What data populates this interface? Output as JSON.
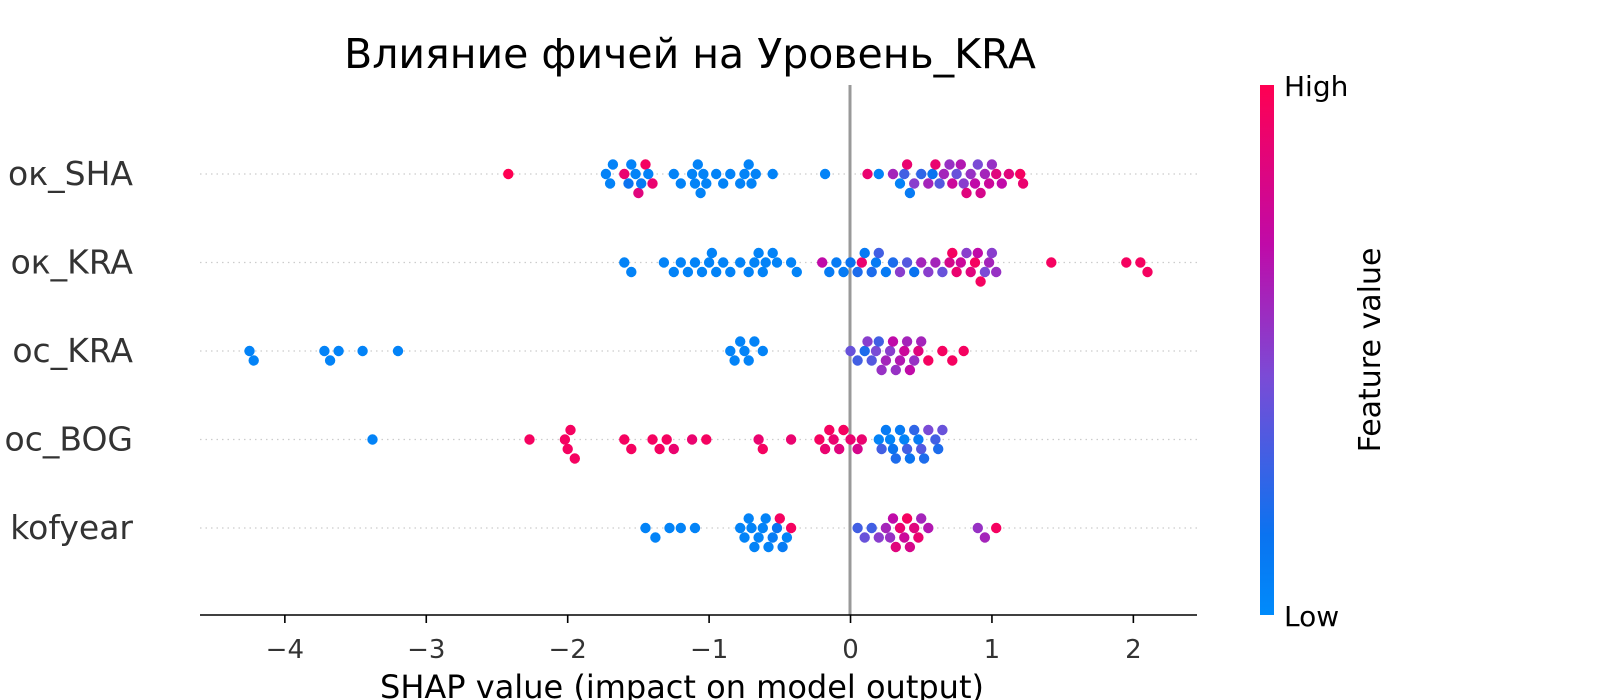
{
  "chart_data": {
    "type": "scatter",
    "subtype": "shap-beeswarm",
    "title": "Влияние фичей на Уровень_KRA",
    "xlabel": "SHAP value (impact on model output)",
    "xlim": [
      -4.6,
      2.45
    ],
    "x_ticks": [
      -4,
      -3,
      -2,
      -1,
      0,
      1,
      2
    ],
    "x_tick_labels": [
      "−4",
      "−3",
      "−2",
      "−1",
      "0",
      "1",
      "2"
    ],
    "colorbar": {
      "label": "Feature value",
      "high_label": "High",
      "low_label": "Low",
      "low_color": "#008bfb",
      "high_color": "#ff0052"
    },
    "zero_line_color": "#999999",
    "grid_dotted_rows": true,
    "features": [
      {
        "label": "ок_SHA",
        "points": [
          [
            -2.42,
            1.0
          ],
          [
            -1.73,
            0.05
          ],
          [
            -1.7,
            0.05
          ],
          [
            -1.68,
            0.05
          ],
          [
            -1.6,
            0.9
          ],
          [
            -1.57,
            0.15
          ],
          [
            -1.55,
            0.05
          ],
          [
            -1.52,
            0.05
          ],
          [
            -1.5,
            0.85
          ],
          [
            -1.48,
            0.1
          ],
          [
            -1.45,
            0.95
          ],
          [
            -1.43,
            0.05
          ],
          [
            -1.4,
            0.9
          ],
          [
            -1.25,
            0.05
          ],
          [
            -1.2,
            0.05
          ],
          [
            -1.12,
            0.05
          ],
          [
            -1.1,
            0.05
          ],
          [
            -1.08,
            0.05
          ],
          [
            -1.06,
            0.05
          ],
          [
            -1.04,
            0.05
          ],
          [
            -1.02,
            0.05
          ],
          [
            -0.95,
            0.05
          ],
          [
            -0.9,
            0.05
          ],
          [
            -0.85,
            0.05
          ],
          [
            -0.78,
            0.05
          ],
          [
            -0.75,
            0.05
          ],
          [
            -0.72,
            0.05
          ],
          [
            -0.7,
            0.05
          ],
          [
            -0.67,
            0.05
          ],
          [
            -0.55,
            0.05
          ],
          [
            -0.18,
            0.05
          ],
          [
            0.12,
            0.9
          ],
          [
            0.2,
            0.05
          ],
          [
            0.3,
            0.6
          ],
          [
            0.35,
            0.05
          ],
          [
            0.38,
            0.3
          ],
          [
            0.4,
            0.9
          ],
          [
            0.42,
            0.1
          ],
          [
            0.45,
            0.5
          ],
          [
            0.5,
            0.25
          ],
          [
            0.55,
            0.6
          ],
          [
            0.58,
            0.15
          ],
          [
            0.6,
            0.9
          ],
          [
            0.63,
            0.35
          ],
          [
            0.66,
            0.6
          ],
          [
            0.7,
            0.55
          ],
          [
            0.72,
            0.75
          ],
          [
            0.75,
            0.4
          ],
          [
            0.78,
            0.65
          ],
          [
            0.8,
            0.5
          ],
          [
            0.82,
            0.85
          ],
          [
            0.85,
            0.55
          ],
          [
            0.88,
            0.7
          ],
          [
            0.9,
            0.45
          ],
          [
            0.92,
            0.8
          ],
          [
            0.95,
            0.6
          ],
          [
            0.98,
            0.75
          ],
          [
            1.0,
            0.55
          ],
          [
            1.03,
            0.85
          ],
          [
            1.07,
            0.7
          ],
          [
            1.12,
            0.85
          ],
          [
            1.2,
            0.95
          ],
          [
            1.22,
            0.9
          ]
        ]
      },
      {
        "label": "ок_KRA",
        "points": [
          [
            -1.6,
            0.05
          ],
          [
            -1.55,
            0.05
          ],
          [
            -1.32,
            0.05
          ],
          [
            -1.25,
            0.05
          ],
          [
            -1.2,
            0.05
          ],
          [
            -1.15,
            0.05
          ],
          [
            -1.1,
            0.05
          ],
          [
            -1.05,
            0.05
          ],
          [
            -1.0,
            0.05
          ],
          [
            -0.98,
            0.05
          ],
          [
            -0.95,
            0.05
          ],
          [
            -0.9,
            0.05
          ],
          [
            -0.85,
            0.05
          ],
          [
            -0.78,
            0.05
          ],
          [
            -0.72,
            0.05
          ],
          [
            -0.68,
            0.05
          ],
          [
            -0.65,
            0.05
          ],
          [
            -0.62,
            0.05
          ],
          [
            -0.6,
            0.05
          ],
          [
            -0.55,
            0.05
          ],
          [
            -0.52,
            0.05
          ],
          [
            -0.42,
            0.05
          ],
          [
            -0.38,
            0.05
          ],
          [
            -0.2,
            0.7
          ],
          [
            -0.15,
            0.1
          ],
          [
            -0.1,
            0.1
          ],
          [
            -0.05,
            0.1
          ],
          [
            0.0,
            0.15
          ],
          [
            0.05,
            0.2
          ],
          [
            0.08,
            0.9
          ],
          [
            0.1,
            0.1
          ],
          [
            0.15,
            0.2
          ],
          [
            0.18,
            0.1
          ],
          [
            0.2,
            0.3
          ],
          [
            0.25,
            0.1
          ],
          [
            0.3,
            0.2
          ],
          [
            0.35,
            0.5
          ],
          [
            0.4,
            0.35
          ],
          [
            0.45,
            0.15
          ],
          [
            0.5,
            0.6
          ],
          [
            0.55,
            0.5
          ],
          [
            0.6,
            0.6
          ],
          [
            0.65,
            0.4
          ],
          [
            0.7,
            0.8
          ],
          [
            0.72,
            0.95
          ],
          [
            0.75,
            0.9
          ],
          [
            0.78,
            0.75
          ],
          [
            0.82,
            0.5
          ],
          [
            0.85,
            0.85
          ],
          [
            0.88,
            0.95
          ],
          [
            0.9,
            0.7
          ],
          [
            0.92,
            0.95
          ],
          [
            0.95,
            0.45
          ],
          [
            0.98,
            0.6
          ],
          [
            1.0,
            0.5
          ],
          [
            1.03,
            0.55
          ],
          [
            1.42,
            0.95
          ],
          [
            1.95,
            0.95
          ],
          [
            2.05,
            0.95
          ],
          [
            2.1,
            0.95
          ]
        ]
      },
      {
        "label": "ос_KRA",
        "points": [
          [
            -4.25,
            0.05
          ],
          [
            -4.22,
            0.05
          ],
          [
            -3.72,
            0.05
          ],
          [
            -3.68,
            0.05
          ],
          [
            -3.62,
            0.05
          ],
          [
            -3.45,
            0.05
          ],
          [
            -3.2,
            0.05
          ],
          [
            -0.85,
            0.05
          ],
          [
            -0.82,
            0.05
          ],
          [
            -0.78,
            0.05
          ],
          [
            -0.75,
            0.05
          ],
          [
            -0.72,
            0.05
          ],
          [
            -0.68,
            0.05
          ],
          [
            -0.62,
            0.05
          ],
          [
            0.0,
            0.4
          ],
          [
            0.05,
            0.3
          ],
          [
            0.1,
            0.2
          ],
          [
            0.12,
            0.5
          ],
          [
            0.15,
            0.35
          ],
          [
            0.18,
            0.45
          ],
          [
            0.2,
            0.3
          ],
          [
            0.22,
            0.55
          ],
          [
            0.25,
            0.6
          ],
          [
            0.28,
            0.5
          ],
          [
            0.3,
            0.7
          ],
          [
            0.32,
            0.55
          ],
          [
            0.35,
            0.65
          ],
          [
            0.38,
            0.75
          ],
          [
            0.4,
            0.6
          ],
          [
            0.42,
            0.7
          ],
          [
            0.45,
            0.55
          ],
          [
            0.48,
            0.85
          ],
          [
            0.5,
            0.6
          ],
          [
            0.55,
            0.95
          ],
          [
            0.65,
            0.95
          ],
          [
            0.72,
            0.95
          ],
          [
            0.8,
            0.95
          ]
        ]
      },
      {
        "label": "ос_BOG",
        "points": [
          [
            -3.38,
            0.05
          ],
          [
            -2.27,
            0.95
          ],
          [
            -2.02,
            0.95
          ],
          [
            -2.0,
            0.95
          ],
          [
            -1.98,
            0.95
          ],
          [
            -1.95,
            0.95
          ],
          [
            -1.6,
            0.95
          ],
          [
            -1.55,
            0.95
          ],
          [
            -1.4,
            0.95
          ],
          [
            -1.35,
            0.95
          ],
          [
            -1.3,
            0.95
          ],
          [
            -1.25,
            0.9
          ],
          [
            -1.12,
            0.9
          ],
          [
            -1.02,
            0.95
          ],
          [
            -0.65,
            0.9
          ],
          [
            -0.62,
            0.95
          ],
          [
            -0.42,
            0.9
          ],
          [
            -0.22,
            0.95
          ],
          [
            -0.18,
            0.9
          ],
          [
            -0.15,
            0.95
          ],
          [
            -0.12,
            0.9
          ],
          [
            -0.08,
            0.85
          ],
          [
            -0.05,
            0.95
          ],
          [
            0.0,
            0.9
          ],
          [
            0.05,
            0.8
          ],
          [
            0.08,
            0.9
          ],
          [
            0.2,
            0.05
          ],
          [
            0.22,
            0.3
          ],
          [
            0.25,
            0.1
          ],
          [
            0.28,
            0.05
          ],
          [
            0.3,
            0.15
          ],
          [
            0.32,
            0.2
          ],
          [
            0.35,
            0.1
          ],
          [
            0.38,
            0.05
          ],
          [
            0.4,
            0.3
          ],
          [
            0.42,
            0.15
          ],
          [
            0.45,
            0.25
          ],
          [
            0.48,
            0.1
          ],
          [
            0.5,
            0.35
          ],
          [
            0.52,
            0.2
          ],
          [
            0.55,
            0.45
          ],
          [
            0.6,
            0.3
          ],
          [
            0.62,
            0.2
          ],
          [
            0.65,
            0.4
          ]
        ]
      },
      {
        "label": "kofyear",
        "points": [
          [
            -1.45,
            0.05
          ],
          [
            -1.38,
            0.05
          ],
          [
            -1.28,
            0.05
          ],
          [
            -1.2,
            0.05
          ],
          [
            -1.1,
            0.05
          ],
          [
            -0.78,
            0.05
          ],
          [
            -0.75,
            0.05
          ],
          [
            -0.72,
            0.05
          ],
          [
            -0.7,
            0.05
          ],
          [
            -0.68,
            0.05
          ],
          [
            -0.65,
            0.05
          ],
          [
            -0.62,
            0.05
          ],
          [
            -0.6,
            0.05
          ],
          [
            -0.58,
            0.05
          ],
          [
            -0.55,
            0.1
          ],
          [
            -0.52,
            0.15
          ],
          [
            -0.5,
            0.95
          ],
          [
            -0.48,
            0.1
          ],
          [
            -0.45,
            0.05
          ],
          [
            -0.42,
            0.95
          ],
          [
            0.05,
            0.3
          ],
          [
            0.1,
            0.4
          ],
          [
            0.15,
            0.3
          ],
          [
            0.2,
            0.5
          ],
          [
            0.25,
            0.6
          ],
          [
            0.28,
            0.55
          ],
          [
            0.3,
            0.7
          ],
          [
            0.32,
            0.85
          ],
          [
            0.35,
            0.9
          ],
          [
            0.38,
            0.75
          ],
          [
            0.4,
            0.95
          ],
          [
            0.42,
            0.8
          ],
          [
            0.45,
            0.85
          ],
          [
            0.48,
            0.9
          ],
          [
            0.5,
            0.6
          ],
          [
            0.55,
            0.65
          ],
          [
            0.9,
            0.55
          ],
          [
            0.95,
            0.6
          ],
          [
            1.03,
            0.95
          ]
        ]
      }
    ]
  }
}
